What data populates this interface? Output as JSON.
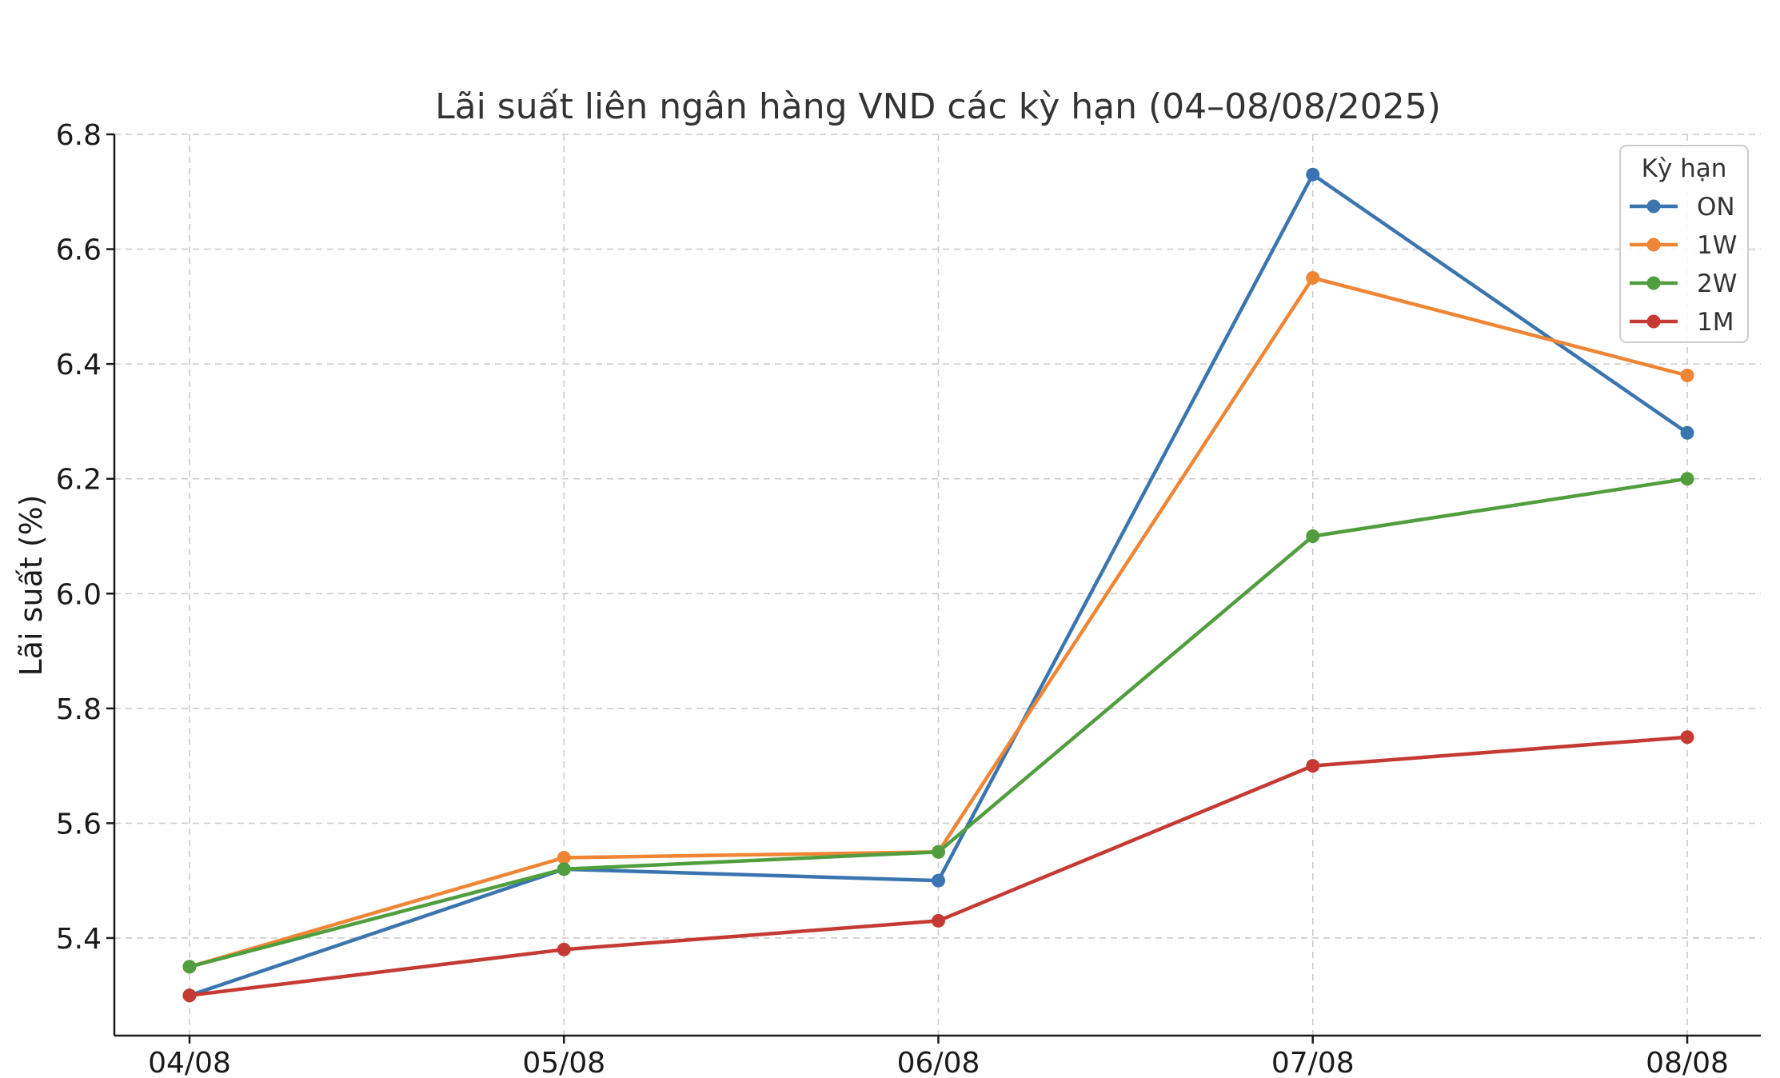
{
  "chart_data": {
    "type": "line",
    "title": "Lãi suất liên ngân hàng VND các kỳ hạn (04–08/08/2025)",
    "xlabel": "",
    "ylabel": "Lãi suất (%)",
    "categories": [
      "04/08",
      "05/08",
      "06/08",
      "07/08",
      "08/08"
    ],
    "ylim": [
      5.23,
      6.8
    ],
    "yticks": [
      5.4,
      5.6,
      5.8,
      6.0,
      6.2,
      6.4,
      6.6,
      6.8
    ],
    "ytick_labels": [
      "5.4",
      "5.6",
      "5.8",
      "6.0",
      "6.2",
      "6.4",
      "6.6",
      "6.8"
    ],
    "grid": true,
    "legend": {
      "title": "Kỳ hạn",
      "placement": "top-right"
    },
    "series": [
      {
        "name": "ON",
        "color": "#3b75af",
        "values": [
          5.3,
          5.52,
          5.5,
          6.73,
          6.28
        ]
      },
      {
        "name": "1W",
        "color": "#ef8636",
        "values": [
          5.35,
          5.54,
          5.55,
          6.55,
          6.38
        ]
      },
      {
        "name": "2W",
        "color": "#519e3e",
        "values": [
          5.35,
          5.52,
          5.55,
          6.1,
          6.2
        ]
      },
      {
        "name": "1M",
        "color": "#c53a32",
        "values": [
          5.3,
          5.38,
          5.43,
          5.7,
          5.75
        ]
      }
    ]
  }
}
